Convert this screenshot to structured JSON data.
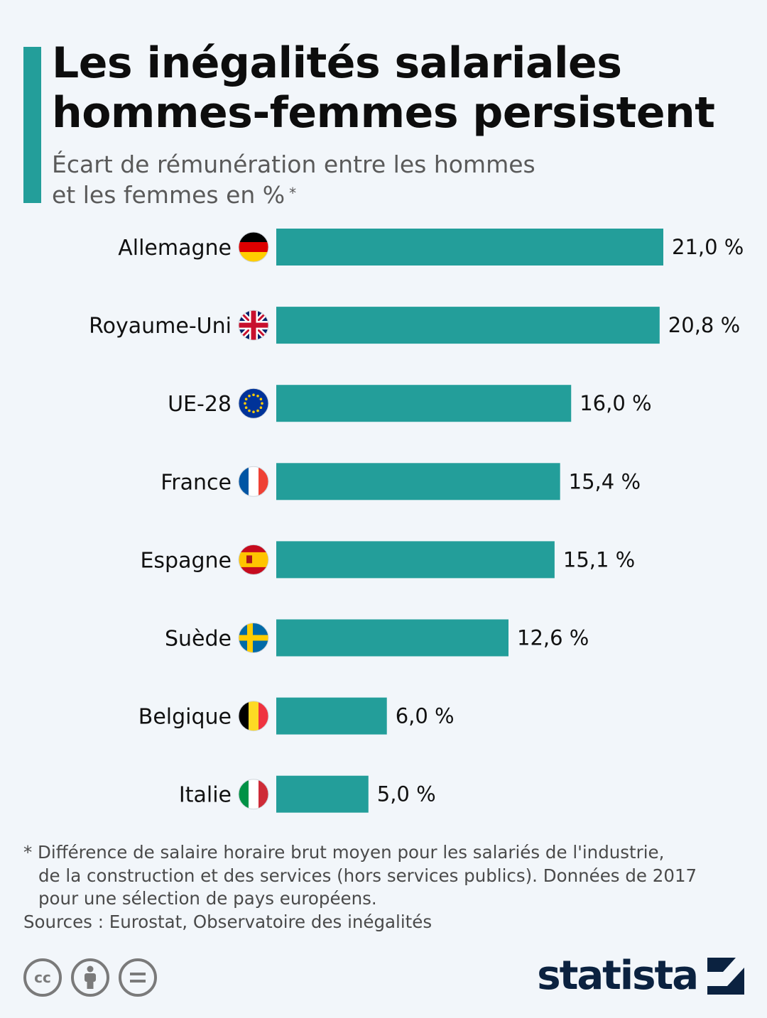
{
  "header": {
    "title_line1": "Les inégalités salariales",
    "title_line2": "hommes-femmes persistent",
    "subtitle_line1": "Écart de rémunération entre les hommes",
    "subtitle_line2": "et les femmes en %",
    "subtitle_marker": "*"
  },
  "chart_data": {
    "type": "bar",
    "orientation": "horizontal",
    "categories": [
      "Allemagne",
      "Royaume-Uni",
      "UE-28",
      "France",
      "Espagne",
      "Suède",
      "Belgique",
      "Italie"
    ],
    "values": [
      21.0,
      20.8,
      16.0,
      15.4,
      15.1,
      12.6,
      6.0,
      5.0
    ],
    "value_labels": [
      "21,0 %",
      "20,8 %",
      "16,0 %",
      "15,4 %",
      "15,1 %",
      "12,6 %",
      "6,0 %",
      "5,0 %"
    ],
    "flags": [
      "germany-flag-icon",
      "uk-flag-icon",
      "eu-flag-icon",
      "france-flag-icon",
      "spain-flag-icon",
      "sweden-flag-icon",
      "belgium-flag-icon",
      "italy-flag-icon"
    ],
    "bar_color": "#239e9a",
    "xlim": [
      0,
      21.0
    ],
    "title": "Les inégalités salariales hommes-femmes persistent",
    "xlabel": "",
    "ylabel": ""
  },
  "footer": {
    "note_line1": "* Différence de salaire horaire brut moyen pour les salariés de l'industrie,",
    "note_line2": "de la construction et des services (hors services publics). Données de 2017",
    "note_line3": "pour une sélection de pays européens.",
    "sources": "Sources : Eurostat, Observatoire des inégalités",
    "licence": [
      "cc",
      "by",
      "nd"
    ],
    "brand": "statista"
  },
  "colors": {
    "accent": "#239e9a",
    "background": "#f2f6fa",
    "brand": "#0b2240"
  }
}
